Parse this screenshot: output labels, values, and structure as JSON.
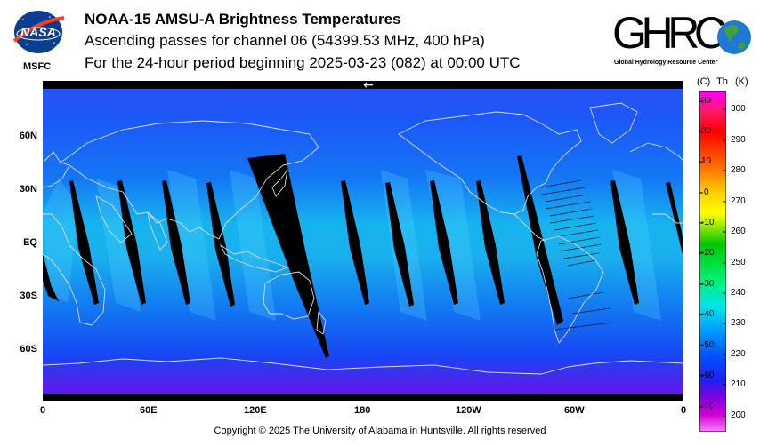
{
  "header": {
    "title": "NOAA-15 AMSU-A Brightness Temperatures",
    "subtitle": "Ascending passes for channel 06 (54399.53 MHz, 400 hPa)",
    "period": "For the 24-hour period beginning 2025-03-23 (082) at 00:00 UTC"
  },
  "logos": {
    "nasa_text": "NASA",
    "msfc_text": "MSFC",
    "ghrc_text": "GHRC",
    "ghrc_subtitle": "Global Hydrology Resource Center"
  },
  "map": {
    "x_ticks": [
      "0",
      "60E",
      "120E",
      "180",
      "120W",
      "60W",
      "0"
    ],
    "y_ticks": [
      "60N",
      "30N",
      "EQ",
      "30S",
      "60S"
    ],
    "arrow_glyph": "←",
    "colors": {
      "background": "#1560f5",
      "gap": "#000000",
      "coast": "#dcdcdc"
    }
  },
  "colorbar": {
    "unit_c": "(C)",
    "unit_tb": "Tb",
    "unit_k": "(K)",
    "celsius_ticks": [
      "30",
      "20",
      "10",
      "0",
      "-10",
      "-20",
      "-30",
      "-40",
      "-50",
      "-60",
      "-70"
    ],
    "kelvin_ticks": [
      "300",
      "290",
      "280",
      "270",
      "260",
      "250",
      "240",
      "230",
      "220",
      "210",
      "200"
    ]
  },
  "footer": {
    "copyright": "Copyright © 2025 The University of Alabama in Huntsville.  All rights reserved"
  }
}
